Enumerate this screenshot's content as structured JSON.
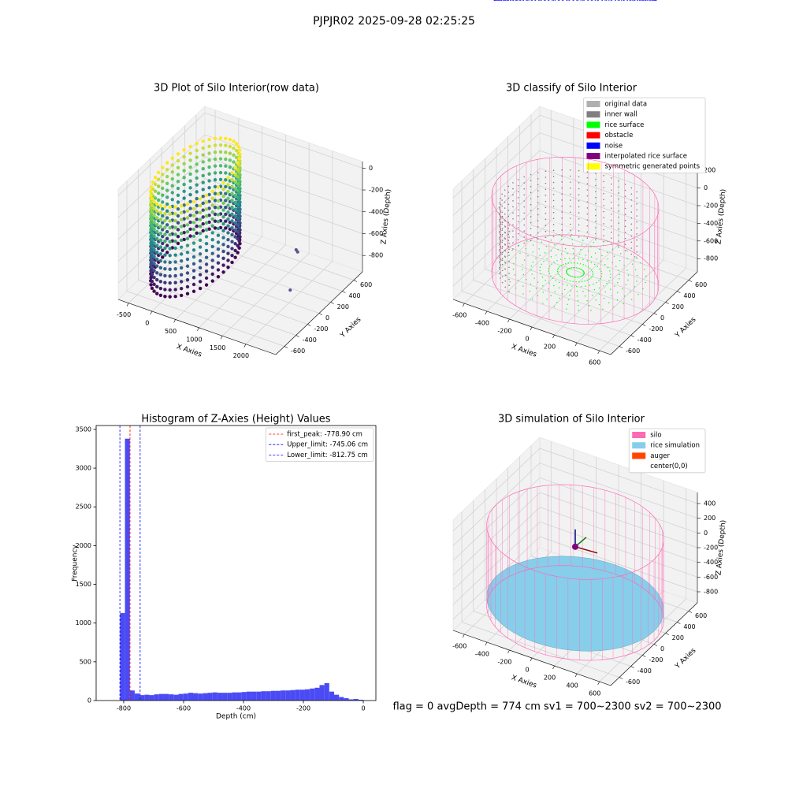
{
  "title": "PJPJR02 2025-09-28 02:25:25",
  "footer": "flag = 0    avgDepth = 774 cm  sv1 = 700~2300  sv2 = 700~2300",
  "chart_data": [
    {
      "type": "scatter3d",
      "title": "3D Plot of Silo Interior(row data)",
      "xlabel": "X Axies",
      "ylabel": "Y Axies",
      "zlabel": "Z Axies (Depth)",
      "xlim": [
        -720,
        2640
      ],
      "ylim": [
        -750,
        750
      ],
      "zlim": [
        -950,
        60
      ],
      "xticks": [
        -500,
        0,
        500,
        1000,
        1500,
        2000
      ],
      "yticks": [
        -600,
        -400,
        -200,
        0,
        200,
        400,
        600
      ],
      "zticks": [
        0,
        -200,
        -400,
        -600,
        -800
      ],
      "grid": true
    },
    {
      "type": "scatter3d",
      "title": "3D classify of Silo Interior",
      "xlabel": "X Axies",
      "ylabel": "Y Axies",
      "zlabel": "Z Axies (Depth)",
      "xlim": [
        -700,
        700
      ],
      "ylim": [
        -750,
        750
      ],
      "zlim": [
        -950,
        300
      ],
      "xticks": [
        -600,
        -400,
        -200,
        0,
        200,
        400,
        600
      ],
      "yticks": [
        -600,
        -400,
        -200,
        0,
        200,
        400,
        600
      ],
      "zticks": [
        200,
        0,
        -200,
        -400,
        -600,
        -800
      ],
      "grid": true,
      "legend": {
        "loc": "upper right",
        "items": [
          {
            "name": "original data",
            "color": "#b0b0b0"
          },
          {
            "name": "inner wall",
            "color": "#808080"
          },
          {
            "name": "rice surface",
            "color": "#00ff00"
          },
          {
            "name": "obstacle",
            "color": "#ff0000"
          },
          {
            "name": "noise",
            "color": "#0000ff"
          },
          {
            "name": "interpolated rice surface",
            "color": "#800080"
          },
          {
            "name": "symmetric generated points",
            "color": "#ffff00"
          }
        ]
      }
    },
    {
      "type": "histogram",
      "title": "Histogram of Z-Axies (Height) Values",
      "xlabel": "Depth (cm)",
      "ylabel": "Frequency",
      "color": "#4b4bf5",
      "bins": [
        -812,
        -795.76,
        -779.52,
        -763.28,
        -747.04,
        -730.8,
        -714.56,
        -698.32,
        -682.08,
        -665.84,
        -649.6,
        -633.36,
        -617.12,
        -600.88,
        -584.64,
        -568.4,
        -552.16,
        -535.92,
        -519.68,
        -503.44,
        -487.2,
        -470.96,
        -454.72,
        -438.48,
        -422.24,
        -406,
        -389.76,
        -373.52,
        -357.28,
        -341.04,
        -324.8,
        -308.56,
        -292.32,
        -276.08,
        -259.84,
        -243.6,
        -227.36,
        -211.12,
        -194.88,
        -178.64,
        -162.4,
        -146.16,
        -129.92,
        -113.68,
        -97.44,
        -81.2,
        -64.96,
        -48.72,
        -32.48,
        -16.24,
        0
      ],
      "values": [
        1130,
        3380,
        130,
        90,
        70,
        75,
        70,
        80,
        85,
        85,
        80,
        75,
        85,
        90,
        100,
        95,
        90,
        95,
        100,
        105,
        100,
        100,
        100,
        105,
        105,
        110,
        115,
        115,
        115,
        120,
        120,
        125,
        125,
        130,
        130,
        135,
        140,
        140,
        145,
        155,
        165,
        200,
        225,
        115,
        75,
        45,
        30,
        15,
        20,
        10
      ],
      "xlim": [
        -892,
        42
      ],
      "ylim": [
        0,
        3550
      ],
      "xticks": [
        -800,
        -600,
        -400,
        -200,
        0
      ],
      "yticks": [
        0,
        500,
        1000,
        1500,
        2000,
        2500,
        3000,
        3500
      ],
      "vlines": [
        {
          "label": "first_peak: -778.90 cm",
          "value": -778.9,
          "color": "#ff0000"
        },
        {
          "label": "Upper_limit: -745.06 cm",
          "value": -745.06,
          "color": "#0000ff"
        },
        {
          "label": "Lower_limit: -812.75 cm",
          "value": -812.75,
          "color": "#0000ff"
        }
      ],
      "legend": {
        "loc": "upper right"
      }
    },
    {
      "type": "scatter3d",
      "title": "3D simulation of Silo Interior",
      "xlabel": "X Axies",
      "ylabel": "Y Axies",
      "zlabel": "Z Axies (Depth)",
      "xlim": [
        -700,
        700
      ],
      "ylim": [
        -750,
        750
      ],
      "zlim": [
        -950,
        550
      ],
      "xticks": [
        -600,
        -400,
        -200,
        0,
        200,
        400,
        600
      ],
      "yticks": [
        -600,
        -400,
        -200,
        0,
        200,
        400,
        600
      ],
      "zticks": [
        400,
        200,
        0,
        -200,
        -400,
        -600,
        -800
      ],
      "grid": true,
      "legend": {
        "loc": "upper right",
        "items": [
          {
            "name": "silo",
            "color": "#ff69b4"
          },
          {
            "name": "rice simulation",
            "color": "#87ceeb"
          },
          {
            "name": "auger",
            "color": "#ff4500"
          },
          {
            "name": "center(0,0)",
            "color": "#ffffff"
          }
        ]
      }
    }
  ]
}
